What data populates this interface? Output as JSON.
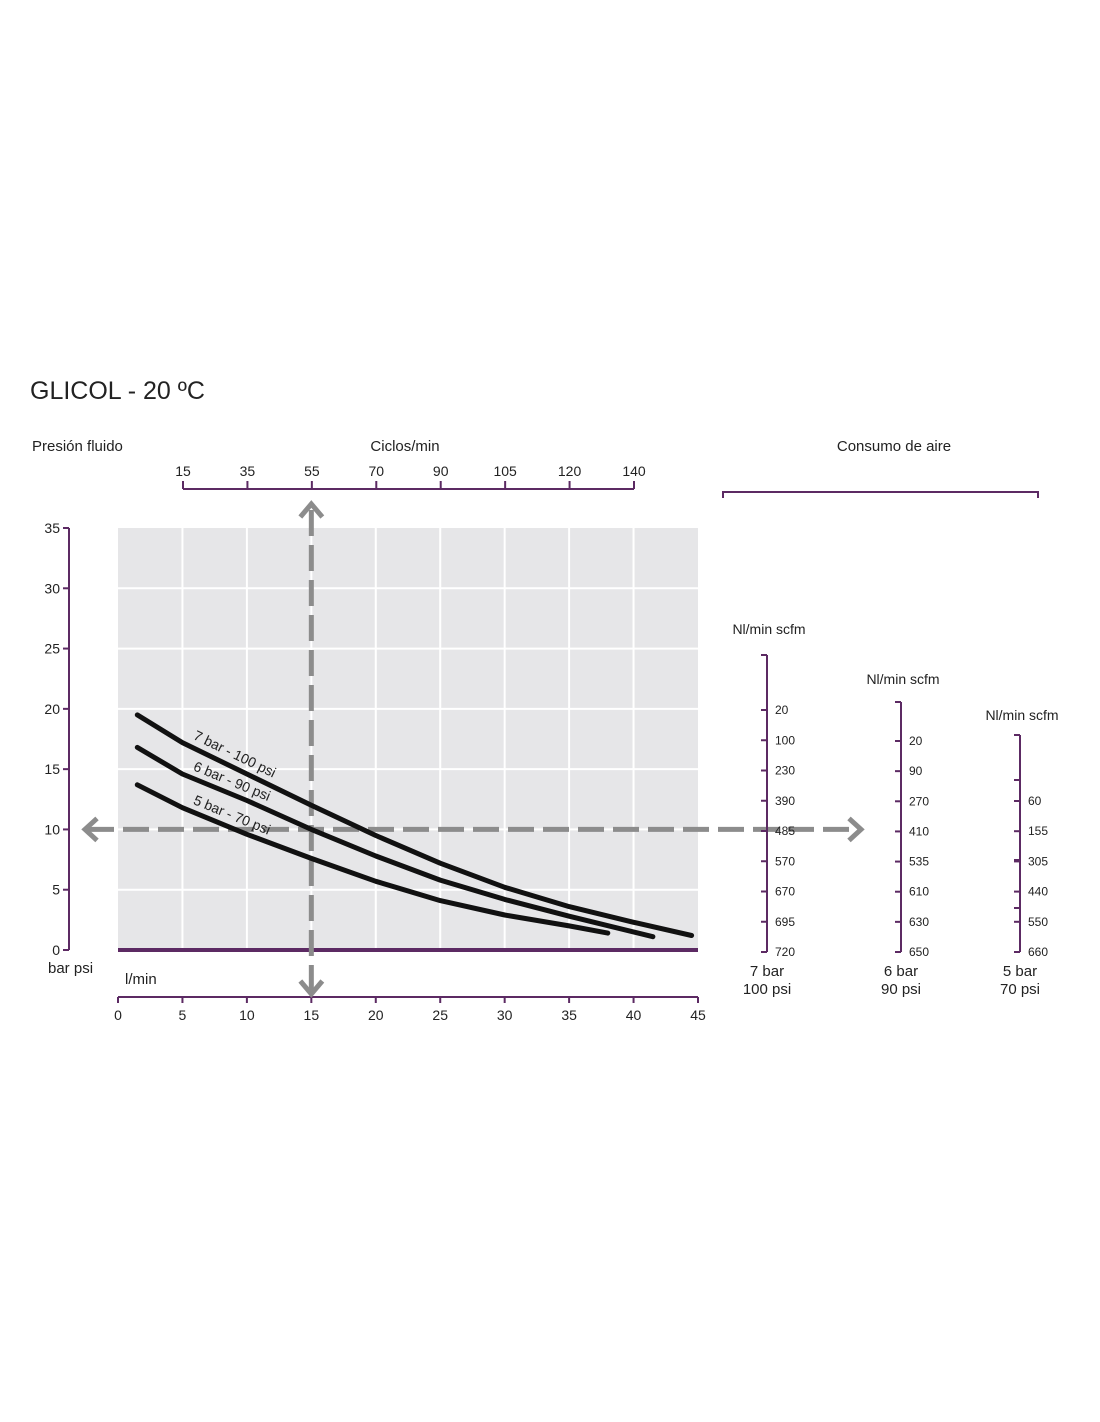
{
  "title": "GLICOL - 20 ºC",
  "colors": {
    "axis": "#5c2a63",
    "plot_bg": "#e6e6e8",
    "grid": "#ffffff",
    "curve": "#111111",
    "arrow": "#8c8c8c"
  },
  "chart_data": {
    "type": "line",
    "title": "GLICOL - 20 ºC",
    "ylabel": "Presión fluido",
    "y_unit_label": "bar psi",
    "xlabel": "l/min",
    "ylim": [
      0,
      35
    ],
    "xlim": [
      0,
      45
    ],
    "y_ticks": [
      0,
      5,
      10,
      15,
      20,
      25,
      30,
      35
    ],
    "x_ticks": [
      0,
      5,
      10,
      15,
      20,
      25,
      30,
      35,
      40,
      45
    ],
    "grid": true,
    "top_axis": {
      "label": "Ciclos/min",
      "ticks": [
        15,
        35,
        55,
        70,
        90,
        105,
        120,
        140
      ]
    },
    "series": [
      {
        "name": "7 bar - 100 psi",
        "x": [
          1.5,
          5,
          10,
          15,
          20,
          25,
          30,
          35,
          40,
          44.5
        ],
        "y": [
          19.5,
          17.2,
          14.6,
          12.0,
          9.5,
          7.2,
          5.2,
          3.6,
          2.3,
          1.2
        ]
      },
      {
        "name": "6 bar - 90 psi",
        "x": [
          1.5,
          5,
          10,
          15,
          20,
          25,
          30,
          35,
          41.5
        ],
        "y": [
          16.8,
          14.6,
          12.4,
          10.0,
          7.8,
          5.8,
          4.2,
          2.8,
          1.1
        ]
      },
      {
        "name": "5 bar - 70 psi",
        "x": [
          1.5,
          5,
          10,
          15,
          20,
          25,
          30,
          35,
          38
        ],
        "y": [
          13.7,
          11.8,
          9.6,
          7.6,
          5.7,
          4.1,
          2.9,
          2.0,
          1.4
        ]
      }
    ],
    "example_reading": {
      "x": 15,
      "y": 10
    },
    "air_consumption": {
      "label": "Consumo de aire",
      "scales": [
        {
          "unit": "Nl/min scfm",
          "pressure_bar": "7 bar",
          "pressure_psi": "100 psi",
          "ticks": [
            "20",
            "100",
            "230",
            "390",
            "485",
            "570",
            "670",
            "695",
            "720"
          ]
        },
        {
          "unit": "Nl/min scfm",
          "pressure_bar": "6 bar",
          "pressure_psi": "90 psi",
          "ticks": [
            "20",
            "90",
            "270",
            "410",
            "535",
            "610",
            "630",
            "650"
          ]
        },
        {
          "unit": "Nl/min scfm",
          "pressure_bar": "5 bar",
          "pressure_psi": "70 psi",
          "ticks": [
            "60",
            "155",
            "305",
            "440",
            "550",
            "660"
          ]
        }
      ]
    }
  }
}
